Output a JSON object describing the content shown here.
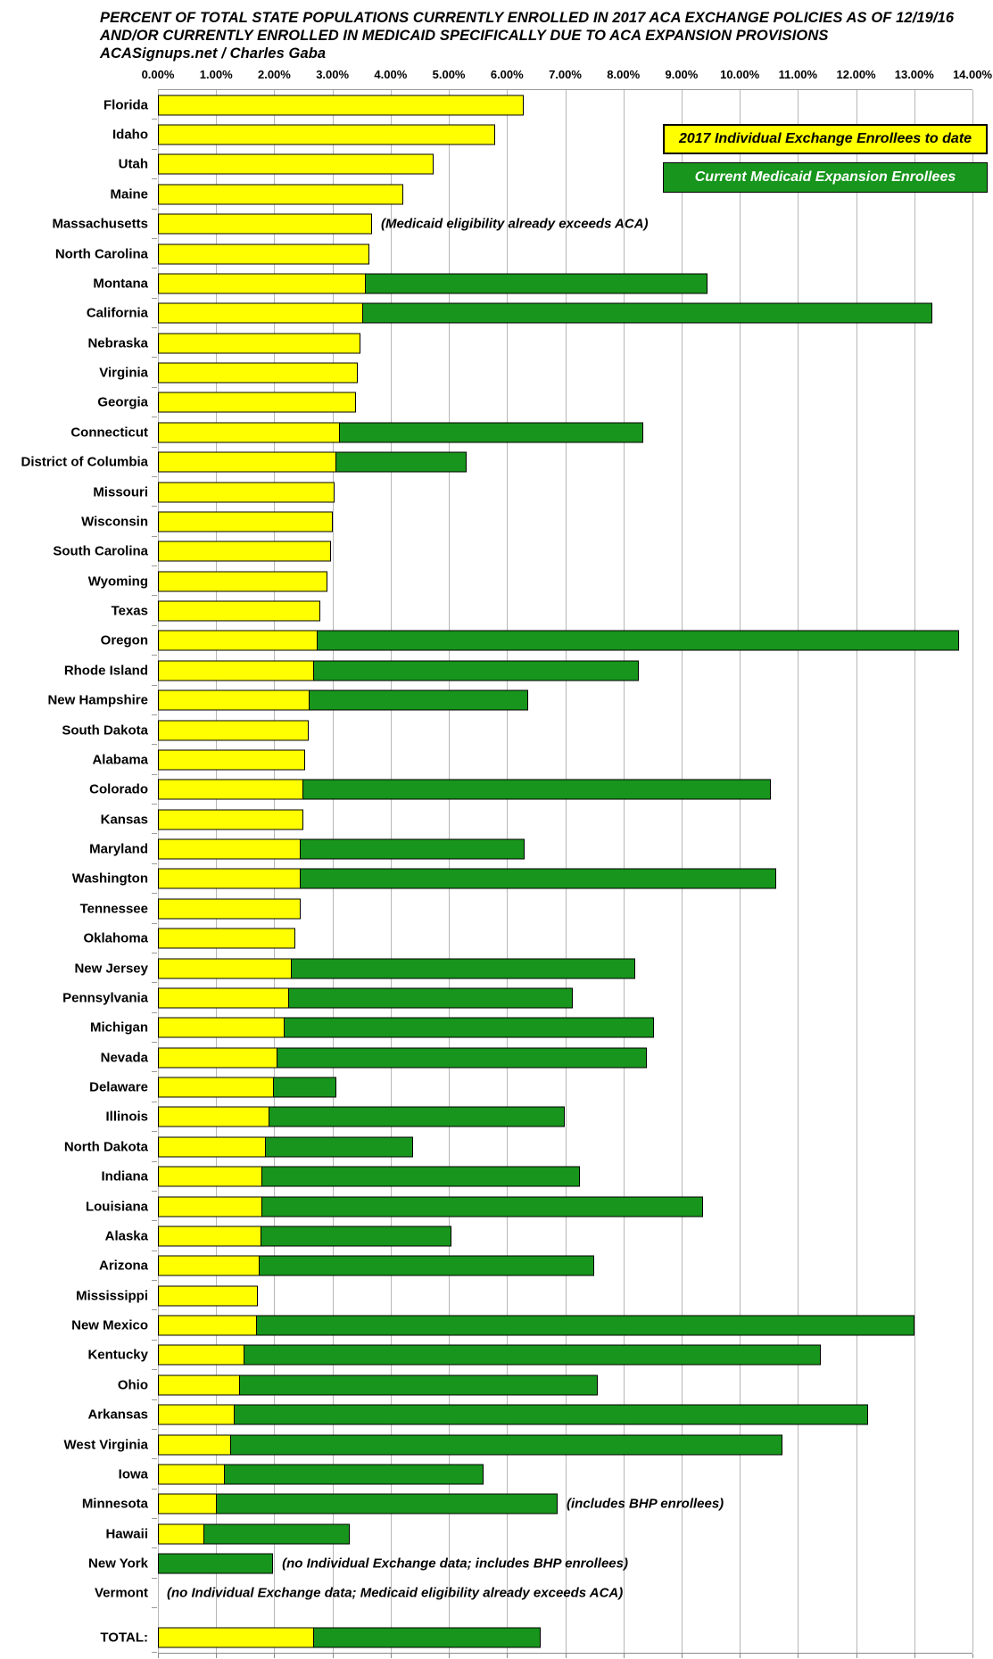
{
  "title": {
    "line1": "PERCENT OF TOTAL STATE POPULATIONS CURRENTLY ENROLLED IN 2017 ACA EXCHANGE POLICIES AS OF 12/19/16",
    "line2": "AND/OR CURRENTLY ENROLLED IN MEDICAID SPECIFICALLY DUE TO ACA EXPANSION PROVISIONS",
    "line3": "ACASignups.net / Charles Gaba"
  },
  "legend": {
    "exchange_label": "2017 Individual Exchange Enrollees to date",
    "medicaid_label": "Current Medicaid Expansion Enrollees"
  },
  "colors": {
    "exchange": "#FFFF00",
    "medicaid": "#17951C",
    "gridline": "#B7B7B7",
    "text": "#000000"
  },
  "x_axis": {
    "min": 0,
    "max": 14,
    "tick_step": 1,
    "ticks": [
      "0.00%",
      "1.00%",
      "2.00%",
      "3.00%",
      "4.00%",
      "5.00%",
      "6.00%",
      "7.00%",
      "8.00%",
      "9.00%",
      "10.00%",
      "11.00%",
      "12.00%",
      "13.00%",
      "14.00%"
    ]
  },
  "chart_data": {
    "type": "bar",
    "orientation": "horizontal",
    "stacked": true,
    "unit": "percent of total state population",
    "series_names": [
      "2017 Individual Exchange Enrollees to date",
      "Current Medicaid Expansion Enrollees"
    ],
    "xlim": [
      0,
      14
    ],
    "grid": true,
    "rows": [
      {
        "state": "Florida",
        "exchange": 6.28,
        "medicaid": 0,
        "note": ""
      },
      {
        "state": "Idaho",
        "exchange": 5.8,
        "medicaid": 0,
        "note": ""
      },
      {
        "state": "Utah",
        "exchange": 4.74,
        "medicaid": 0,
        "note": ""
      },
      {
        "state": "Maine",
        "exchange": 4.22,
        "medicaid": 0,
        "note": ""
      },
      {
        "state": "Massachusetts",
        "exchange": 3.68,
        "medicaid": 0,
        "note": "(Medicaid eligibility already exceeds ACA)"
      },
      {
        "state": "North Carolina",
        "exchange": 3.63,
        "medicaid": 0,
        "note": ""
      },
      {
        "state": "Montana",
        "exchange": 3.58,
        "medicaid": 5.86,
        "note": ""
      },
      {
        "state": "California",
        "exchange": 3.53,
        "medicaid": 9.78,
        "note": ""
      },
      {
        "state": "Nebraska",
        "exchange": 3.48,
        "medicaid": 0,
        "note": ""
      },
      {
        "state": "Virginia",
        "exchange": 3.43,
        "medicaid": 0,
        "note": ""
      },
      {
        "state": "Georgia",
        "exchange": 3.41,
        "medicaid": 0,
        "note": ""
      },
      {
        "state": "Connecticut",
        "exchange": 3.13,
        "medicaid": 5.21,
        "note": ""
      },
      {
        "state": "District of Columbia",
        "exchange": 3.06,
        "medicaid": 2.24,
        "note": ""
      },
      {
        "state": "Missouri",
        "exchange": 3.04,
        "medicaid": 0,
        "note": ""
      },
      {
        "state": "Wisconsin",
        "exchange": 3.0,
        "medicaid": 0,
        "note": ""
      },
      {
        "state": "South Carolina",
        "exchange": 2.97,
        "medicaid": 0,
        "note": ""
      },
      {
        "state": "Wyoming",
        "exchange": 2.91,
        "medicaid": 0,
        "note": ""
      },
      {
        "state": "Texas",
        "exchange": 2.79,
        "medicaid": 0,
        "note": ""
      },
      {
        "state": "Oregon",
        "exchange": 2.75,
        "medicaid": 11.02,
        "note": ""
      },
      {
        "state": "Rhode Island",
        "exchange": 2.69,
        "medicaid": 5.57,
        "note": ""
      },
      {
        "state": "New Hampshire",
        "exchange": 2.6,
        "medicaid": 3.76,
        "note": ""
      },
      {
        "state": "South Dakota",
        "exchange": 2.59,
        "medicaid": 0,
        "note": ""
      },
      {
        "state": "Alabama",
        "exchange": 2.53,
        "medicaid": 0,
        "note": ""
      },
      {
        "state": "Colorado",
        "exchange": 2.5,
        "medicaid": 8.04,
        "note": ""
      },
      {
        "state": "Kansas",
        "exchange": 2.5,
        "medicaid": 0,
        "note": ""
      },
      {
        "state": "Maryland",
        "exchange": 2.46,
        "medicaid": 3.84,
        "note": ""
      },
      {
        "state": "Washington",
        "exchange": 2.45,
        "medicaid": 8.18,
        "note": ""
      },
      {
        "state": "Tennessee",
        "exchange": 2.45,
        "medicaid": 0,
        "note": ""
      },
      {
        "state": "Oklahoma",
        "exchange": 2.36,
        "medicaid": 0,
        "note": ""
      },
      {
        "state": "New Jersey",
        "exchange": 2.3,
        "medicaid": 5.91,
        "note": ""
      },
      {
        "state": "Pennsylvania",
        "exchange": 2.26,
        "medicaid": 4.87,
        "note": ""
      },
      {
        "state": "Michigan",
        "exchange": 2.18,
        "medicaid": 6.35,
        "note": ""
      },
      {
        "state": "Nevada",
        "exchange": 2.06,
        "medicaid": 6.35,
        "note": ""
      },
      {
        "state": "Delaware",
        "exchange": 2.0,
        "medicaid": 1.07,
        "note": ""
      },
      {
        "state": "Illinois",
        "exchange": 1.91,
        "medicaid": 5.09,
        "note": ""
      },
      {
        "state": "North Dakota",
        "exchange": 1.86,
        "medicaid": 2.52,
        "note": ""
      },
      {
        "state": "Indiana",
        "exchange": 1.79,
        "medicaid": 5.46,
        "note": ""
      },
      {
        "state": "Louisiana",
        "exchange": 1.79,
        "medicaid": 7.58,
        "note": ""
      },
      {
        "state": "Alaska",
        "exchange": 1.78,
        "medicaid": 3.26,
        "note": ""
      },
      {
        "state": "Arizona",
        "exchange": 1.75,
        "medicaid": 5.75,
        "note": ""
      },
      {
        "state": "Mississippi",
        "exchange": 1.72,
        "medicaid": 0,
        "note": ""
      },
      {
        "state": "New Mexico",
        "exchange": 1.7,
        "medicaid": 11.3,
        "note": ""
      },
      {
        "state": "Kentucky",
        "exchange": 1.49,
        "medicaid": 9.91,
        "note": ""
      },
      {
        "state": "Ohio",
        "exchange": 1.41,
        "medicaid": 6.15,
        "note": ""
      },
      {
        "state": "Arkansas",
        "exchange": 1.32,
        "medicaid": 10.88,
        "note": ""
      },
      {
        "state": "West Virginia",
        "exchange": 1.25,
        "medicaid": 9.48,
        "note": ""
      },
      {
        "state": "Iowa",
        "exchange": 1.15,
        "medicaid": 4.45,
        "note": ""
      },
      {
        "state": "Minnesota",
        "exchange": 1.01,
        "medicaid": 5.86,
        "note": "(includes BHP enrollees)"
      },
      {
        "state": "Hawaii",
        "exchange": 0.79,
        "medicaid": 2.51,
        "note": ""
      },
      {
        "state": "New York",
        "exchange": 0,
        "medicaid": 1.98,
        "note": "(no Individual Exchange data; includes BHP enrollees)"
      },
      {
        "state": "Vermont",
        "exchange": 0,
        "medicaid": 0,
        "note": "(no Individual Exchange data; Medicaid eligibility already exceeds ACA)"
      },
      {
        "state": "TOTAL:",
        "exchange": 2.69,
        "medicaid": 3.89,
        "note": "",
        "is_total": true
      }
    ]
  }
}
